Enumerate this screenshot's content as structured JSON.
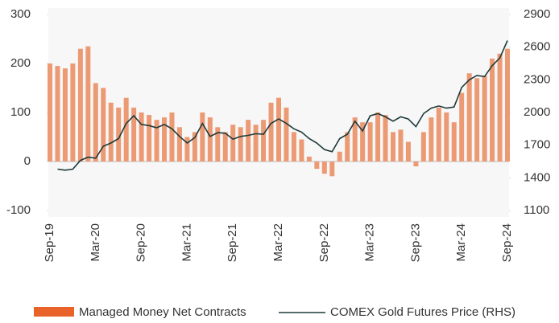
{
  "chart_data": {
    "type": "bar_line",
    "categories": [
      "Sep-19",
      null,
      null,
      null,
      null,
      null,
      "Mar-20",
      null,
      null,
      null,
      null,
      null,
      "Sep-20",
      null,
      null,
      null,
      null,
      null,
      "Mar-21",
      null,
      null,
      null,
      null,
      null,
      "Sep-21",
      null,
      null,
      null,
      null,
      null,
      "Mar-22",
      null,
      null,
      null,
      null,
      null,
      "Sep-22",
      null,
      null,
      null,
      null,
      null,
      "Mar-23",
      null,
      null,
      null,
      null,
      null,
      "Sep-23",
      null,
      null,
      null,
      null,
      null,
      "Mar-24",
      null,
      null,
      null,
      null,
      null,
      "Sep-24"
    ],
    "series": [
      {
        "name": "Managed Money Net Contracts",
        "type": "bar",
        "color": "#ec9a74",
        "values": [
          200,
          195,
          190,
          200,
          230,
          235,
          160,
          150,
          120,
          110,
          130,
          110,
          100,
          95,
          85,
          90,
          100,
          70,
          50,
          60,
          100,
          90,
          70,
          60,
          75,
          70,
          85,
          75,
          85,
          120,
          130,
          110,
          60,
          45,
          10,
          -15,
          -25,
          -30,
          20,
          60,
          90,
          80,
          80,
          100,
          95,
          60,
          65,
          40,
          -10,
          60,
          90,
          110,
          100,
          80,
          140,
          180,
          170,
          175,
          210,
          220,
          230
        ]
      },
      {
        "name": "COMEX Gold Futures Price (RHS)",
        "type": "line",
        "axis": "y2",
        "color": "#1f3a3a",
        "values": [
          null,
          1480,
          1470,
          1480,
          1560,
          1590,
          1580,
          1690,
          1720,
          1760,
          1900,
          1970,
          1890,
          1880,
          1860,
          1890,
          1850,
          1780,
          1720,
          1770,
          1900,
          1780,
          1815,
          1810,
          1755,
          1780,
          1790,
          1805,
          1800,
          1900,
          1940,
          1900,
          1850,
          1820,
          1760,
          1720,
          1660,
          1640,
          1760,
          1800,
          1920,
          1830,
          1970,
          1990,
          1960,
          1920,
          1960,
          1940,
          1870,
          1990,
          2040,
          2060,
          2040,
          2050,
          2230,
          2300,
          2340,
          2330,
          2430,
          2500,
          2660
        ]
      }
    ],
    "ylim": [
      -100,
      300
    ],
    "yticks": [
      -100,
      0,
      100,
      200,
      300
    ],
    "y2lim": [
      1100,
      2900
    ],
    "y2ticks": [
      1100,
      1400,
      1700,
      2000,
      2300,
      2600,
      2900
    ]
  }
}
